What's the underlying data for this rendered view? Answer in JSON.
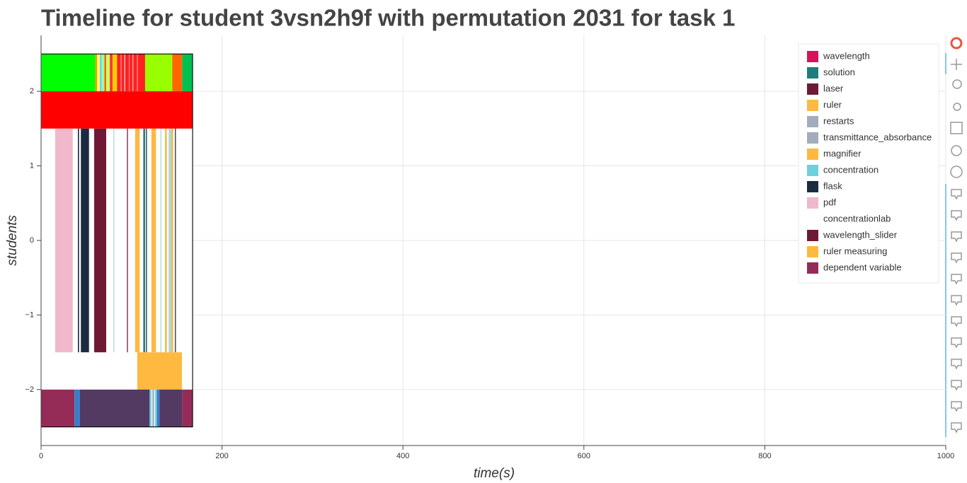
{
  "chart_data": {
    "type": "timeline",
    "title": "Timeline for student 3vsn2h9f with permutation 2031 for task 1",
    "x_label": "time(s)",
    "y_label": "students",
    "xlim": [
      0,
      1000
    ],
    "ylim": [
      -2.75,
      2.75
    ],
    "xticks": [
      0,
      200,
      400,
      600,
      800,
      1000
    ],
    "yticks": [
      {
        "value": -2,
        "label": "−2"
      },
      {
        "value": -1,
        "label": "−1"
      },
      0,
      1,
      2
    ],
    "grid": true,
    "frame": {
      "x0": 0,
      "x1": 167.5,
      "y0": -2.5,
      "y1": 2.5
    },
    "rows": [
      {
        "y0": 2,
        "y1": 2.5,
        "segments": [
          {
            "x0": 0,
            "x1": 60,
            "color": "#00ff00"
          },
          {
            "x0": 60,
            "x1": 62,
            "color": "#ff9900"
          },
          {
            "x0": 62,
            "x1": 65,
            "color": "#ffff66"
          },
          {
            "x0": 65,
            "x1": 67,
            "color": "#66ccff"
          },
          {
            "x0": 67,
            "x1": 70,
            "color": "#99ff99"
          },
          {
            "x0": 70,
            "x1": 72,
            "color": "#ff6600"
          },
          {
            "x0": 72,
            "x1": 76,
            "color": "#ccff66"
          },
          {
            "x0": 76,
            "x1": 79,
            "color": "#ff3333"
          },
          {
            "x0": 79,
            "x1": 84,
            "color": "#ffcc00"
          },
          {
            "x0": 84,
            "x1": 115,
            "color": "#ff2020"
          },
          {
            "x0": 88,
            "x1": 89,
            "color": "#ff9999"
          },
          {
            "x0": 92,
            "x1": 93,
            "color": "#ffcccc"
          },
          {
            "x0": 97,
            "x1": 98,
            "color": "#ff8080"
          },
          {
            "x0": 101,
            "x1": 102,
            "color": "#ffb3b3"
          },
          {
            "x0": 106,
            "x1": 107,
            "color": "#ff9999"
          },
          {
            "x0": 115,
            "x1": 145,
            "color": "#99ff00"
          },
          {
            "x0": 145,
            "x1": 156,
            "color": "#ff6600"
          },
          {
            "x0": 156,
            "x1": 167.5,
            "color": "#00c050"
          }
        ]
      },
      {
        "y0": 1.5,
        "y1": 2,
        "segments": [
          {
            "x0": 0,
            "x1": 167.5,
            "color": "#ff0000"
          }
        ]
      },
      {
        "y0": -1.5,
        "y1": 1.5,
        "segments": [
          {
            "x0": 15.6,
            "x1": 35,
            "color": "#f0b8cb"
          },
          {
            "x0": 40.7,
            "x1": 42,
            "color": "#1b2c40"
          },
          {
            "x0": 44,
            "x1": 53,
            "color": "#1b2c40"
          },
          {
            "x0": 58.7,
            "x1": 72,
            "color": "#6e1a35"
          },
          {
            "x0": 80,
            "x1": 81,
            "color": "#a8d8e0"
          },
          {
            "x0": 95,
            "x1": 96,
            "color": "#6e1a35"
          },
          {
            "x0": 104,
            "x1": 109,
            "color": "#ffb840"
          },
          {
            "x0": 113,
            "x1": 115,
            "color": "#1e7d7d"
          },
          {
            "x0": 116,
            "x1": 117,
            "color": "#1b2c40"
          },
          {
            "x0": 122,
            "x1": 127,
            "color": "#ffb840"
          },
          {
            "x0": 132,
            "x1": 133,
            "color": "#a8d8e0"
          },
          {
            "x0": 137,
            "x1": 139,
            "color": "#ffb840"
          },
          {
            "x0": 141,
            "x1": 144,
            "color": "#a8d8e0"
          },
          {
            "x0": 144,
            "x1": 146,
            "color": "#ffb840"
          },
          {
            "x0": 148,
            "x1": 149,
            "color": "#1b2c40"
          }
        ]
      },
      {
        "y0": -2,
        "y1": -1.5,
        "segments": [
          {
            "x0": 106.4,
            "x1": 155.7,
            "color": "#ffb840"
          }
        ]
      },
      {
        "y0": -2.5,
        "y1": -2,
        "segments": [
          {
            "x0": 0,
            "x1": 37,
            "color": "#952c58"
          },
          {
            "x0": 37,
            "x1": 43,
            "color": "#3a7dc9"
          },
          {
            "x0": 43,
            "x1": 120,
            "color": "#523a63"
          },
          {
            "x0": 120,
            "x1": 122,
            "color": "#6ed0dc"
          },
          {
            "x0": 123,
            "x1": 125,
            "color": "#a2acbb"
          },
          {
            "x0": 126,
            "x1": 128,
            "color": "#6ed0dc"
          },
          {
            "x0": 128,
            "x1": 131,
            "color": "#3a7dc9"
          },
          {
            "x0": 131,
            "x1": 156,
            "color": "#523a63"
          },
          {
            "x0": 156,
            "x1": 167.5,
            "color": "#952c58"
          }
        ]
      }
    ],
    "series": [
      {
        "name": "wavelength",
        "color": "#d6125a"
      },
      {
        "name": "solution",
        "color": "#1e7d7d"
      },
      {
        "name": "laser",
        "color": "#6e1a35"
      },
      {
        "name": "ruler",
        "color": "#ffb840"
      },
      {
        "name": "restarts",
        "color": "#a2acbb"
      },
      {
        "name": "transmittance_absorbance",
        "color": "#a2acbb"
      },
      {
        "name": "magnifier",
        "color": "#ffb840"
      },
      {
        "name": "concentration",
        "color": "#6ed0dc"
      },
      {
        "name": "flask",
        "color": "#1b2c40"
      },
      {
        "name": "pdf",
        "color": "#f0b8cb"
      },
      {
        "name": "concentrationlab",
        "color": "#ffffff"
      },
      {
        "name": "wavelength_slider",
        "color": "#6e1a35"
      },
      {
        "name": "ruler measuring",
        "color": "#ffb840"
      },
      {
        "name": "dependent variable",
        "color": "#952c58"
      }
    ],
    "legend": "top-right"
  }
}
